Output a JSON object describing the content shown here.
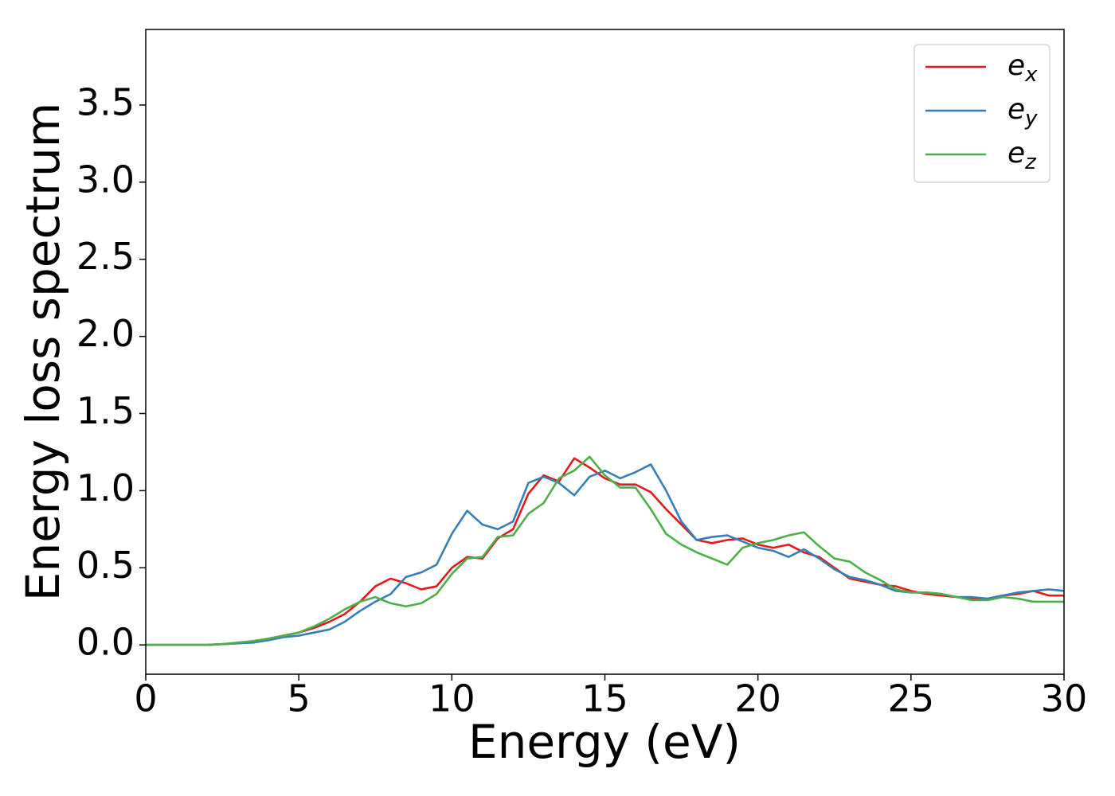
{
  "chart_data": {
    "type": "line",
    "xlabel": "Energy (eV)",
    "ylabel": "Energy loss spectrum",
    "x": [
      0,
      0.5,
      1,
      1.5,
      2,
      2.5,
      3,
      3.5,
      4,
      4.5,
      5,
      5.5,
      6,
      6.5,
      7,
      7.5,
      8,
      8.5,
      9,
      9.5,
      10,
      10.5,
      11,
      11.5,
      12,
      12.5,
      13,
      13.5,
      14,
      14.5,
      15,
      15.5,
      16,
      16.5,
      17,
      17.5,
      18,
      18.5,
      19,
      19.5,
      20,
      20.5,
      21,
      21.5,
      22,
      22.5,
      23,
      23.5,
      24,
      24.5,
      25,
      25.5,
      26,
      26.5,
      27,
      27.5,
      28,
      28.5,
      29,
      29.5,
      30
    ],
    "series": [
      {
        "name": "e_x",
        "color": "#e41a1c",
        "values": [
          0,
          0,
          0,
          0,
          0,
          0.005,
          0.01,
          0.02,
          0.04,
          0.06,
          0.08,
          0.11,
          0.15,
          0.2,
          0.28,
          0.38,
          0.43,
          0.4,
          0.36,
          0.38,
          0.5,
          0.57,
          0.56,
          0.69,
          0.75,
          0.98,
          1.1,
          1.06,
          1.21,
          1.15,
          1.08,
          1.04,
          1.04,
          0.99,
          0.88,
          0.78,
          0.68,
          0.66,
          0.68,
          0.69,
          0.65,
          0.63,
          0.65,
          0.6,
          0.57,
          0.5,
          0.43,
          0.41,
          0.39,
          0.38,
          0.35,
          0.33,
          0.32,
          0.31,
          0.3,
          0.3,
          0.32,
          0.33,
          0.35,
          0.32,
          0.32
        ]
      },
      {
        "name": "e_y",
        "color": "#377eb8",
        "values": [
          0,
          0,
          0,
          0,
          0,
          0.005,
          0.01,
          0.015,
          0.03,
          0.05,
          0.06,
          0.08,
          0.1,
          0.15,
          0.22,
          0.28,
          0.33,
          0.44,
          0.47,
          0.52,
          0.72,
          0.87,
          0.78,
          0.75,
          0.8,
          1.05,
          1.09,
          1.05,
          0.97,
          1.09,
          1.13,
          1.08,
          1.12,
          1.17,
          1.0,
          0.8,
          0.68,
          0.7,
          0.71,
          0.67,
          0.63,
          0.61,
          0.57,
          0.62,
          0.56,
          0.49,
          0.44,
          0.42,
          0.39,
          0.35,
          0.34,
          0.34,
          0.33,
          0.31,
          0.31,
          0.3,
          0.32,
          0.34,
          0.35,
          0.36,
          0.35
        ]
      },
      {
        "name": "e_z",
        "color": "#4daf4a",
        "values": [
          0,
          0,
          0,
          0,
          0,
          0.005,
          0.015,
          0.025,
          0.04,
          0.06,
          0.08,
          0.12,
          0.17,
          0.23,
          0.28,
          0.31,
          0.27,
          0.25,
          0.27,
          0.33,
          0.46,
          0.56,
          0.57,
          0.7,
          0.71,
          0.85,
          0.92,
          1.08,
          1.13,
          1.22,
          1.1,
          1.02,
          1.02,
          0.88,
          0.72,
          0.65,
          0.6,
          0.56,
          0.52,
          0.63,
          0.66,
          0.68,
          0.71,
          0.73,
          0.64,
          0.56,
          0.54,
          0.47,
          0.42,
          0.36,
          0.34,
          0.34,
          0.33,
          0.31,
          0.29,
          0.29,
          0.31,
          0.3,
          0.28,
          0.28,
          0.28
        ]
      }
    ],
    "xlim": [
      0,
      30
    ],
    "xticks": [
      0,
      5,
      10,
      15,
      20,
      25,
      30
    ],
    "ylim": [
      -0.19,
      3.99
    ],
    "yticks": [
      {
        "value": 0,
        "label": "0.0"
      },
      0.5,
      {
        "value": 1,
        "label": "1.0"
      },
      1.5,
      {
        "value": 2,
        "label": "2.0"
      },
      2.5,
      {
        "value": 3,
        "label": "3.0"
      },
      3.5
    ],
    "grid": false,
    "legend": "upper right"
  }
}
